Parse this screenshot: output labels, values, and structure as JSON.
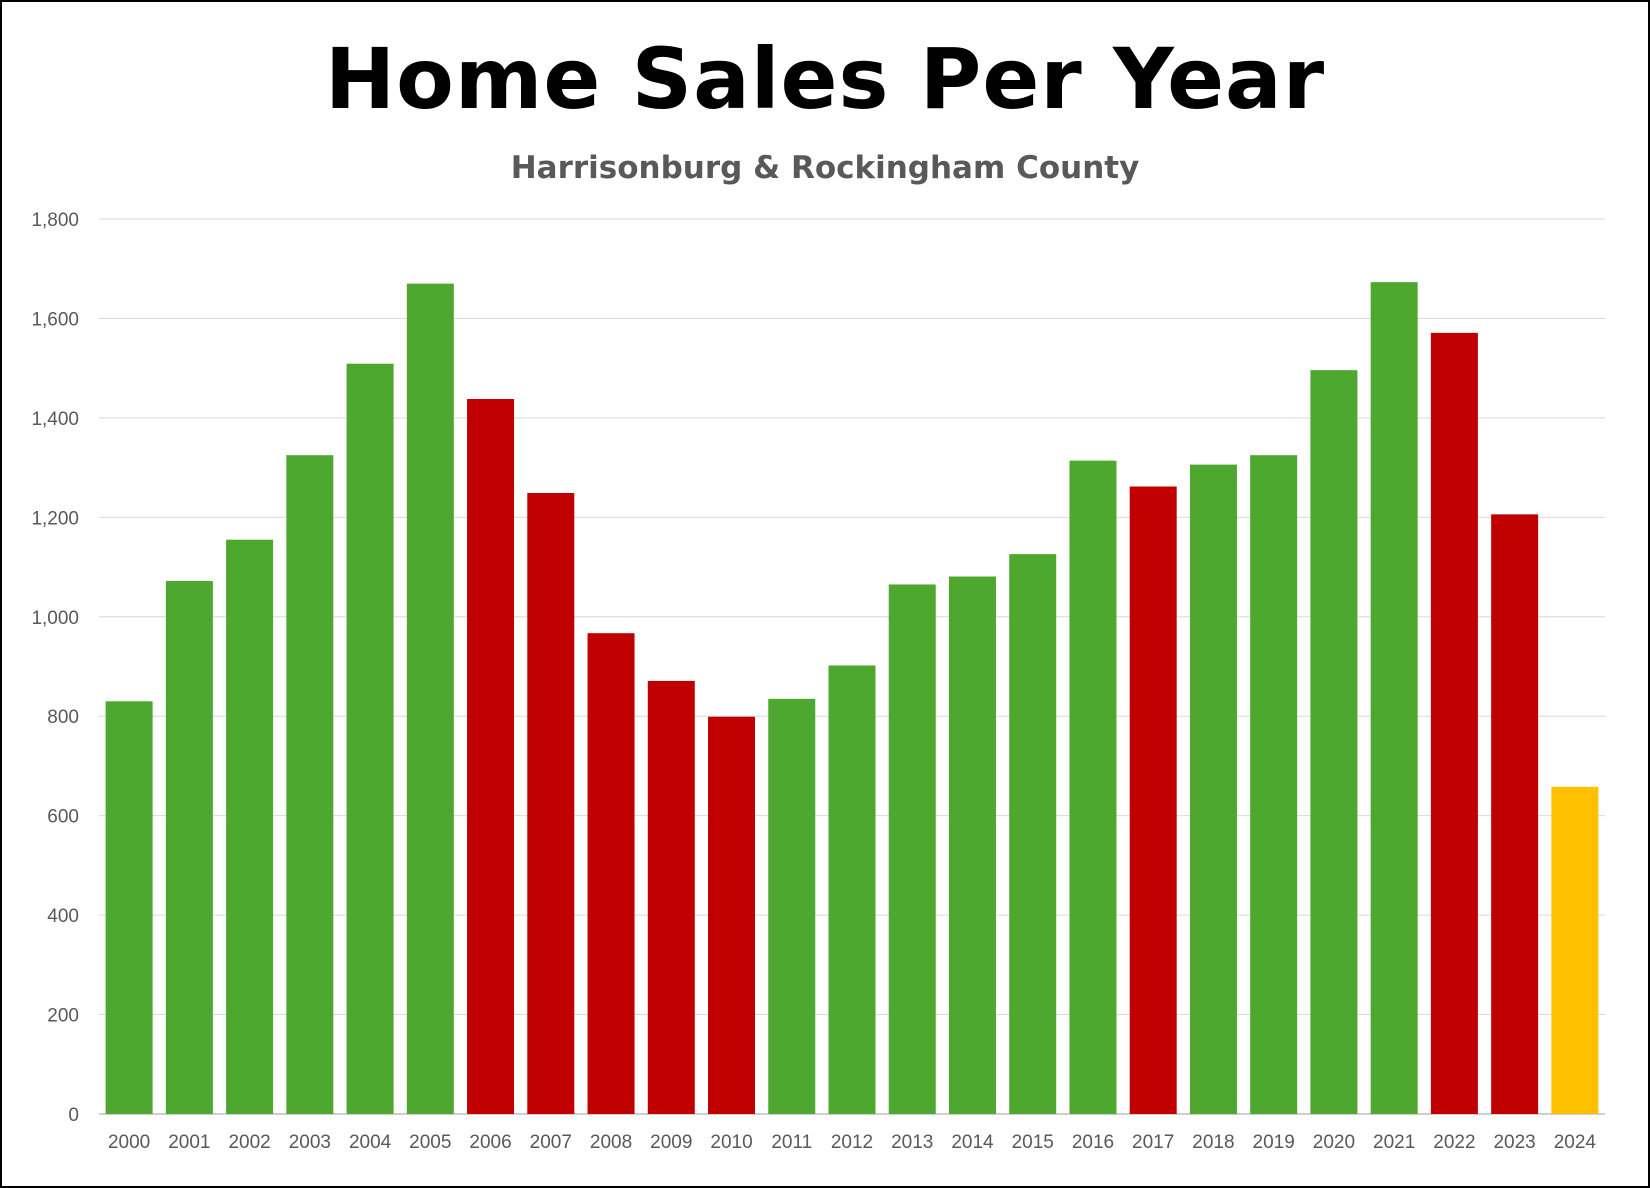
{
  "chart_data": {
    "type": "bar",
    "title": "Home Sales Per Year",
    "subtitle": "Harrisonburg & Rockingham County",
    "xlabel": "",
    "ylabel": "",
    "ylim": [
      0,
      1800
    ],
    "yticks": [
      0,
      200,
      400,
      600,
      800,
      1000,
      1200,
      1400,
      1600,
      1800
    ],
    "ytick_labels": [
      "0",
      "200",
      "400",
      "600",
      "800",
      "1,000",
      "1,200",
      "1,400",
      "1,600",
      "1,800"
    ],
    "grid": true,
    "legend": "none",
    "categories": [
      "2000",
      "2001",
      "2002",
      "2003",
      "2004",
      "2005",
      "2006",
      "2007",
      "2008",
      "2009",
      "2010",
      "2011",
      "2012",
      "2013",
      "2014",
      "2015",
      "2016",
      "2017",
      "2018",
      "2019",
      "2020",
      "2021",
      "2022",
      "2023",
      "2024"
    ],
    "values": [
      830,
      1072,
      1155,
      1325,
      1509,
      1670,
      1438,
      1249,
      967,
      871,
      799,
      835,
      902,
      1065,
      1081,
      1126,
      1314,
      1262,
      1306,
      1325,
      1496,
      1673,
      1571,
      1206,
      658
    ],
    "bar_status": [
      "up",
      "up",
      "up",
      "up",
      "up",
      "up",
      "down",
      "down",
      "down",
      "down",
      "down",
      "up",
      "up",
      "up",
      "up",
      "up",
      "up",
      "down",
      "up",
      "up",
      "up",
      "up",
      "down",
      "down",
      "partial"
    ],
    "colors": {
      "up": "#4EA72E",
      "down": "#C00000",
      "partial": "#FFC000",
      "grid": "#D9D9D9",
      "axis": "#BFBFBF",
      "text": "#595959"
    }
  }
}
